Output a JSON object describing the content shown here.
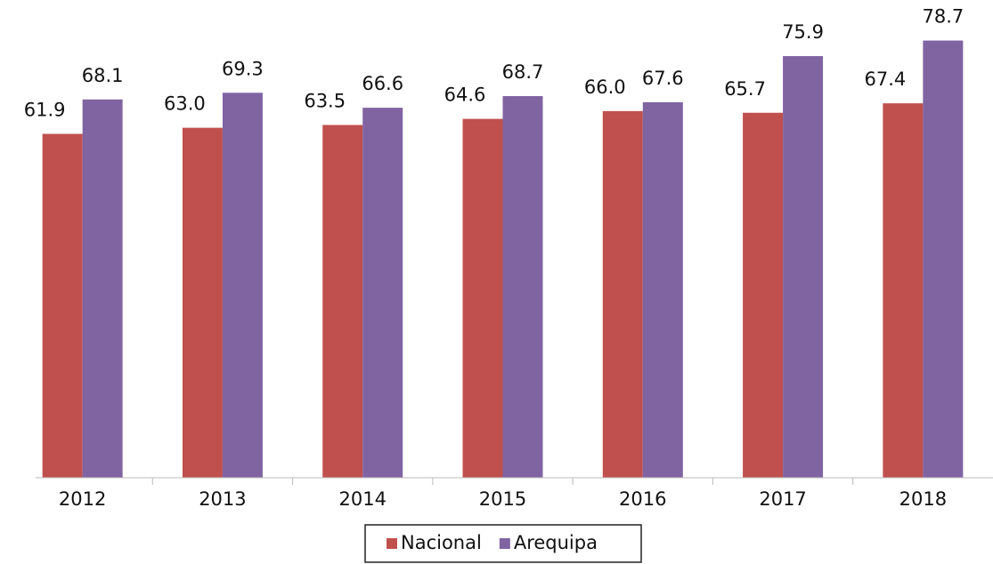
{
  "chart_data": {
    "type": "bar",
    "categories": [
      "2012",
      "2013",
      "2014",
      "2015",
      "2016",
      "2017",
      "2018"
    ],
    "series": [
      {
        "name": "Nacional",
        "color": "#c0504d",
        "values": [
          61.9,
          63.0,
          63.5,
          64.6,
          66.0,
          65.7,
          67.4
        ],
        "value_labels": [
          "61.9",
          "63.0",
          "63.5",
          "64.6",
          "66.0",
          "65.7",
          "67.4"
        ]
      },
      {
        "name": "Arequipa",
        "color": "#8064a2",
        "values": [
          68.1,
          69.3,
          66.6,
          68.7,
          67.6,
          75.9,
          78.7
        ],
        "value_labels": [
          "68.1",
          "69.3",
          "66.6",
          "68.7",
          "67.6",
          "75.9",
          "78.7"
        ]
      }
    ],
    "ylim": [
      0,
      86
    ],
    "legend": "bottom"
  }
}
